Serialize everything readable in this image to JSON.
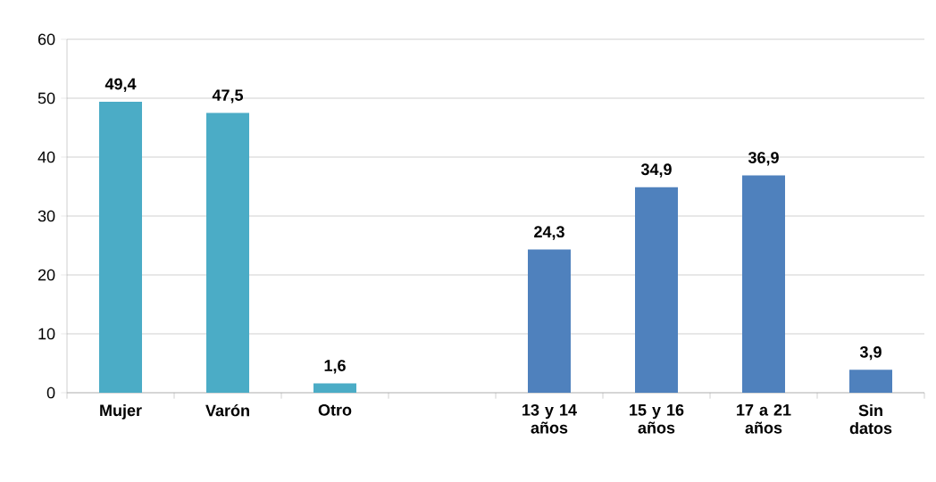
{
  "chart_data": {
    "type": "bar",
    "categories": [
      "Mujer",
      "Varón",
      "Otro",
      null,
      "13 y 14 años",
      "15 y 16 años",
      "17 a 21 años",
      "Sin datos"
    ],
    "values": [
      49.4,
      47.5,
      1.6,
      null,
      24.3,
      34.9,
      36.9,
      3.9
    ],
    "value_labels": [
      "49,4",
      "47,5",
      "1,6",
      null,
      "24,3",
      "34,9",
      "36,9",
      "3,9"
    ],
    "colors": [
      "#4bacc6",
      "#4bacc6",
      "#4bacc6",
      null,
      "#4f81bd",
      "#4f81bd",
      "#4f81bd",
      "#4f81bd"
    ],
    "ylim": [
      0,
      60
    ],
    "yticks": [
      0,
      10,
      20,
      30,
      40,
      50,
      60
    ],
    "grid": "y"
  }
}
